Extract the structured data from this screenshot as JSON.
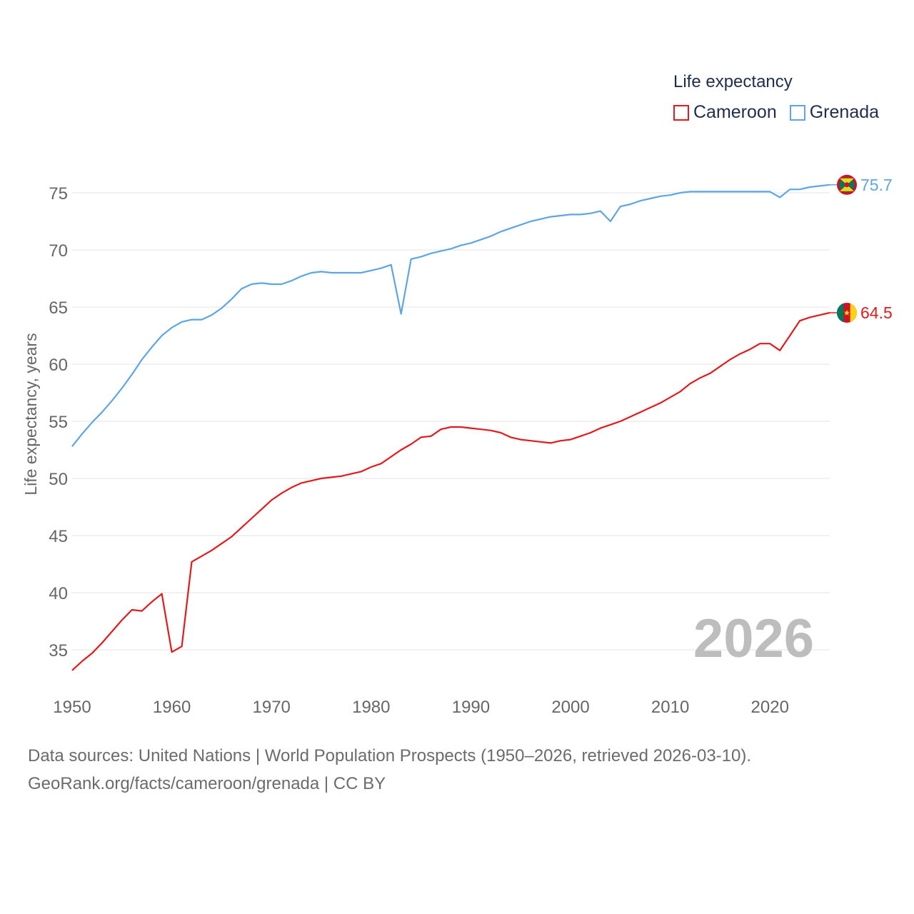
{
  "legend": {
    "title": "Life expectancy",
    "items": [
      {
        "label": "Cameroon",
        "color": "#e31a1c"
      },
      {
        "label": "Grenada",
        "color": "#5da5e5"
      }
    ]
  },
  "year_overlay": "2026",
  "footer": {
    "line1": "Data sources: United Nations | World Population Prospects (1950–2026, retrieved 2026-03-10).",
    "line2": "GeoRank.org/facts/cameroon/grenada | CC BY"
  },
  "chart_data": {
    "type": "line",
    "title": "Life expectancy",
    "xlabel": "",
    "ylabel": "Life expectancy, years",
    "xlim": [
      1950,
      2026
    ],
    "ylim": [
      32,
      77.5
    ],
    "x_ticks": [
      1950,
      1960,
      1970,
      1980,
      1990,
      2000,
      2010,
      2020
    ],
    "y_ticks": [
      35,
      40,
      45,
      50,
      55,
      60,
      65,
      70,
      75
    ],
    "grid": true,
    "legend_position": "top-right",
    "series": [
      {
        "name": "Grenada",
        "color": "#5da5e5",
        "end_label": "75.7",
        "flag": "grenada-flag",
        "points": [
          [
            1950,
            52.8
          ],
          [
            1951,
            53.9
          ],
          [
            1952,
            54.9
          ],
          [
            1953,
            55.8
          ],
          [
            1954,
            56.8
          ],
          [
            1955,
            57.9
          ],
          [
            1956,
            59.1
          ],
          [
            1957,
            60.4
          ],
          [
            1958,
            61.5
          ],
          [
            1959,
            62.5
          ],
          [
            1960,
            63.2
          ],
          [
            1961,
            63.7
          ],
          [
            1962,
            63.9
          ],
          [
            1963,
            63.9
          ],
          [
            1964,
            64.3
          ],
          [
            1965,
            64.9
          ],
          [
            1966,
            65.7
          ],
          [
            1967,
            66.6
          ],
          [
            1968,
            67.0
          ],
          [
            1969,
            67.1
          ],
          [
            1970,
            67.0
          ],
          [
            1971,
            67.0
          ],
          [
            1972,
            67.3
          ],
          [
            1973,
            67.7
          ],
          [
            1974,
            68.0
          ],
          [
            1975,
            68.1
          ],
          [
            1976,
            68.0
          ],
          [
            1977,
            68.0
          ],
          [
            1978,
            68.0
          ],
          [
            1979,
            68.0
          ],
          [
            1980,
            68.2
          ],
          [
            1981,
            68.4
          ],
          [
            1982,
            68.7
          ],
          [
            1983,
            64.4
          ],
          [
            1984,
            69.2
          ],
          [
            1985,
            69.4
          ],
          [
            1986,
            69.7
          ],
          [
            1987,
            69.9
          ],
          [
            1988,
            70.1
          ],
          [
            1989,
            70.4
          ],
          [
            1990,
            70.6
          ],
          [
            1991,
            70.9
          ],
          [
            1992,
            71.2
          ],
          [
            1993,
            71.6
          ],
          [
            1994,
            71.9
          ],
          [
            1995,
            72.2
          ],
          [
            1996,
            72.5
          ],
          [
            1997,
            72.7
          ],
          [
            1998,
            72.9
          ],
          [
            1999,
            73.0
          ],
          [
            2000,
            73.1
          ],
          [
            2001,
            73.1
          ],
          [
            2002,
            73.2
          ],
          [
            2003,
            73.4
          ],
          [
            2004,
            72.5
          ],
          [
            2005,
            73.8
          ],
          [
            2006,
            74.0
          ],
          [
            2007,
            74.3
          ],
          [
            2008,
            74.5
          ],
          [
            2009,
            74.7
          ],
          [
            2010,
            74.8
          ],
          [
            2011,
            75.0
          ],
          [
            2012,
            75.1
          ],
          [
            2013,
            75.1
          ],
          [
            2014,
            75.1
          ],
          [
            2015,
            75.1
          ],
          [
            2016,
            75.1
          ],
          [
            2017,
            75.1
          ],
          [
            2018,
            75.1
          ],
          [
            2019,
            75.1
          ],
          [
            2020,
            75.1
          ],
          [
            2021,
            74.6
          ],
          [
            2022,
            75.3
          ],
          [
            2023,
            75.3
          ],
          [
            2024,
            75.5
          ],
          [
            2025,
            75.6
          ],
          [
            2026,
            75.7
          ]
        ]
      },
      {
        "name": "Cameroon",
        "color": "#e31a1c",
        "end_label": "64.5",
        "flag": "cameroon-flag",
        "points": [
          [
            1950,
            33.2
          ],
          [
            1951,
            34.0
          ],
          [
            1952,
            34.7
          ],
          [
            1953,
            35.6
          ],
          [
            1954,
            36.6
          ],
          [
            1955,
            37.6
          ],
          [
            1956,
            38.5
          ],
          [
            1957,
            38.4
          ],
          [
            1958,
            39.2
          ],
          [
            1959,
            39.9
          ],
          [
            1960,
            34.8
          ],
          [
            1961,
            35.3
          ],
          [
            1962,
            42.7
          ],
          [
            1963,
            43.2
          ],
          [
            1964,
            43.7
          ],
          [
            1965,
            44.3
          ],
          [
            1966,
            44.9
          ],
          [
            1967,
            45.7
          ],
          [
            1968,
            46.5
          ],
          [
            1969,
            47.3
          ],
          [
            1970,
            48.1
          ],
          [
            1971,
            48.7
          ],
          [
            1972,
            49.2
          ],
          [
            1973,
            49.6
          ],
          [
            1974,
            49.8
          ],
          [
            1975,
            50.0
          ],
          [
            1976,
            50.1
          ],
          [
            1977,
            50.2
          ],
          [
            1978,
            50.4
          ],
          [
            1979,
            50.6
          ],
          [
            1980,
            51.0
          ],
          [
            1981,
            51.3
          ],
          [
            1982,
            51.9
          ],
          [
            1983,
            52.5
          ],
          [
            1984,
            53.0
          ],
          [
            1985,
            53.6
          ],
          [
            1986,
            53.7
          ],
          [
            1987,
            54.3
          ],
          [
            1988,
            54.5
          ],
          [
            1989,
            54.5
          ],
          [
            1990,
            54.4
          ],
          [
            1991,
            54.3
          ],
          [
            1992,
            54.2
          ],
          [
            1993,
            54.0
          ],
          [
            1994,
            53.6
          ],
          [
            1995,
            53.4
          ],
          [
            1996,
            53.3
          ],
          [
            1997,
            53.2
          ],
          [
            1998,
            53.1
          ],
          [
            1999,
            53.3
          ],
          [
            2000,
            53.4
          ],
          [
            2001,
            53.7
          ],
          [
            2002,
            54.0
          ],
          [
            2003,
            54.4
          ],
          [
            2004,
            54.7
          ],
          [
            2005,
            55.0
          ],
          [
            2006,
            55.4
          ],
          [
            2007,
            55.8
          ],
          [
            2008,
            56.2
          ],
          [
            2009,
            56.6
          ],
          [
            2010,
            57.1
          ],
          [
            2011,
            57.6
          ],
          [
            2012,
            58.3
          ],
          [
            2013,
            58.8
          ],
          [
            2014,
            59.2
          ],
          [
            2015,
            59.8
          ],
          [
            2016,
            60.4
          ],
          [
            2017,
            60.9
          ],
          [
            2018,
            61.3
          ],
          [
            2019,
            61.8
          ],
          [
            2020,
            61.8
          ],
          [
            2021,
            61.2
          ],
          [
            2022,
            62.5
          ],
          [
            2023,
            63.8
          ],
          [
            2024,
            64.1
          ],
          [
            2025,
            64.3
          ],
          [
            2026,
            64.5
          ]
        ]
      }
    ]
  }
}
